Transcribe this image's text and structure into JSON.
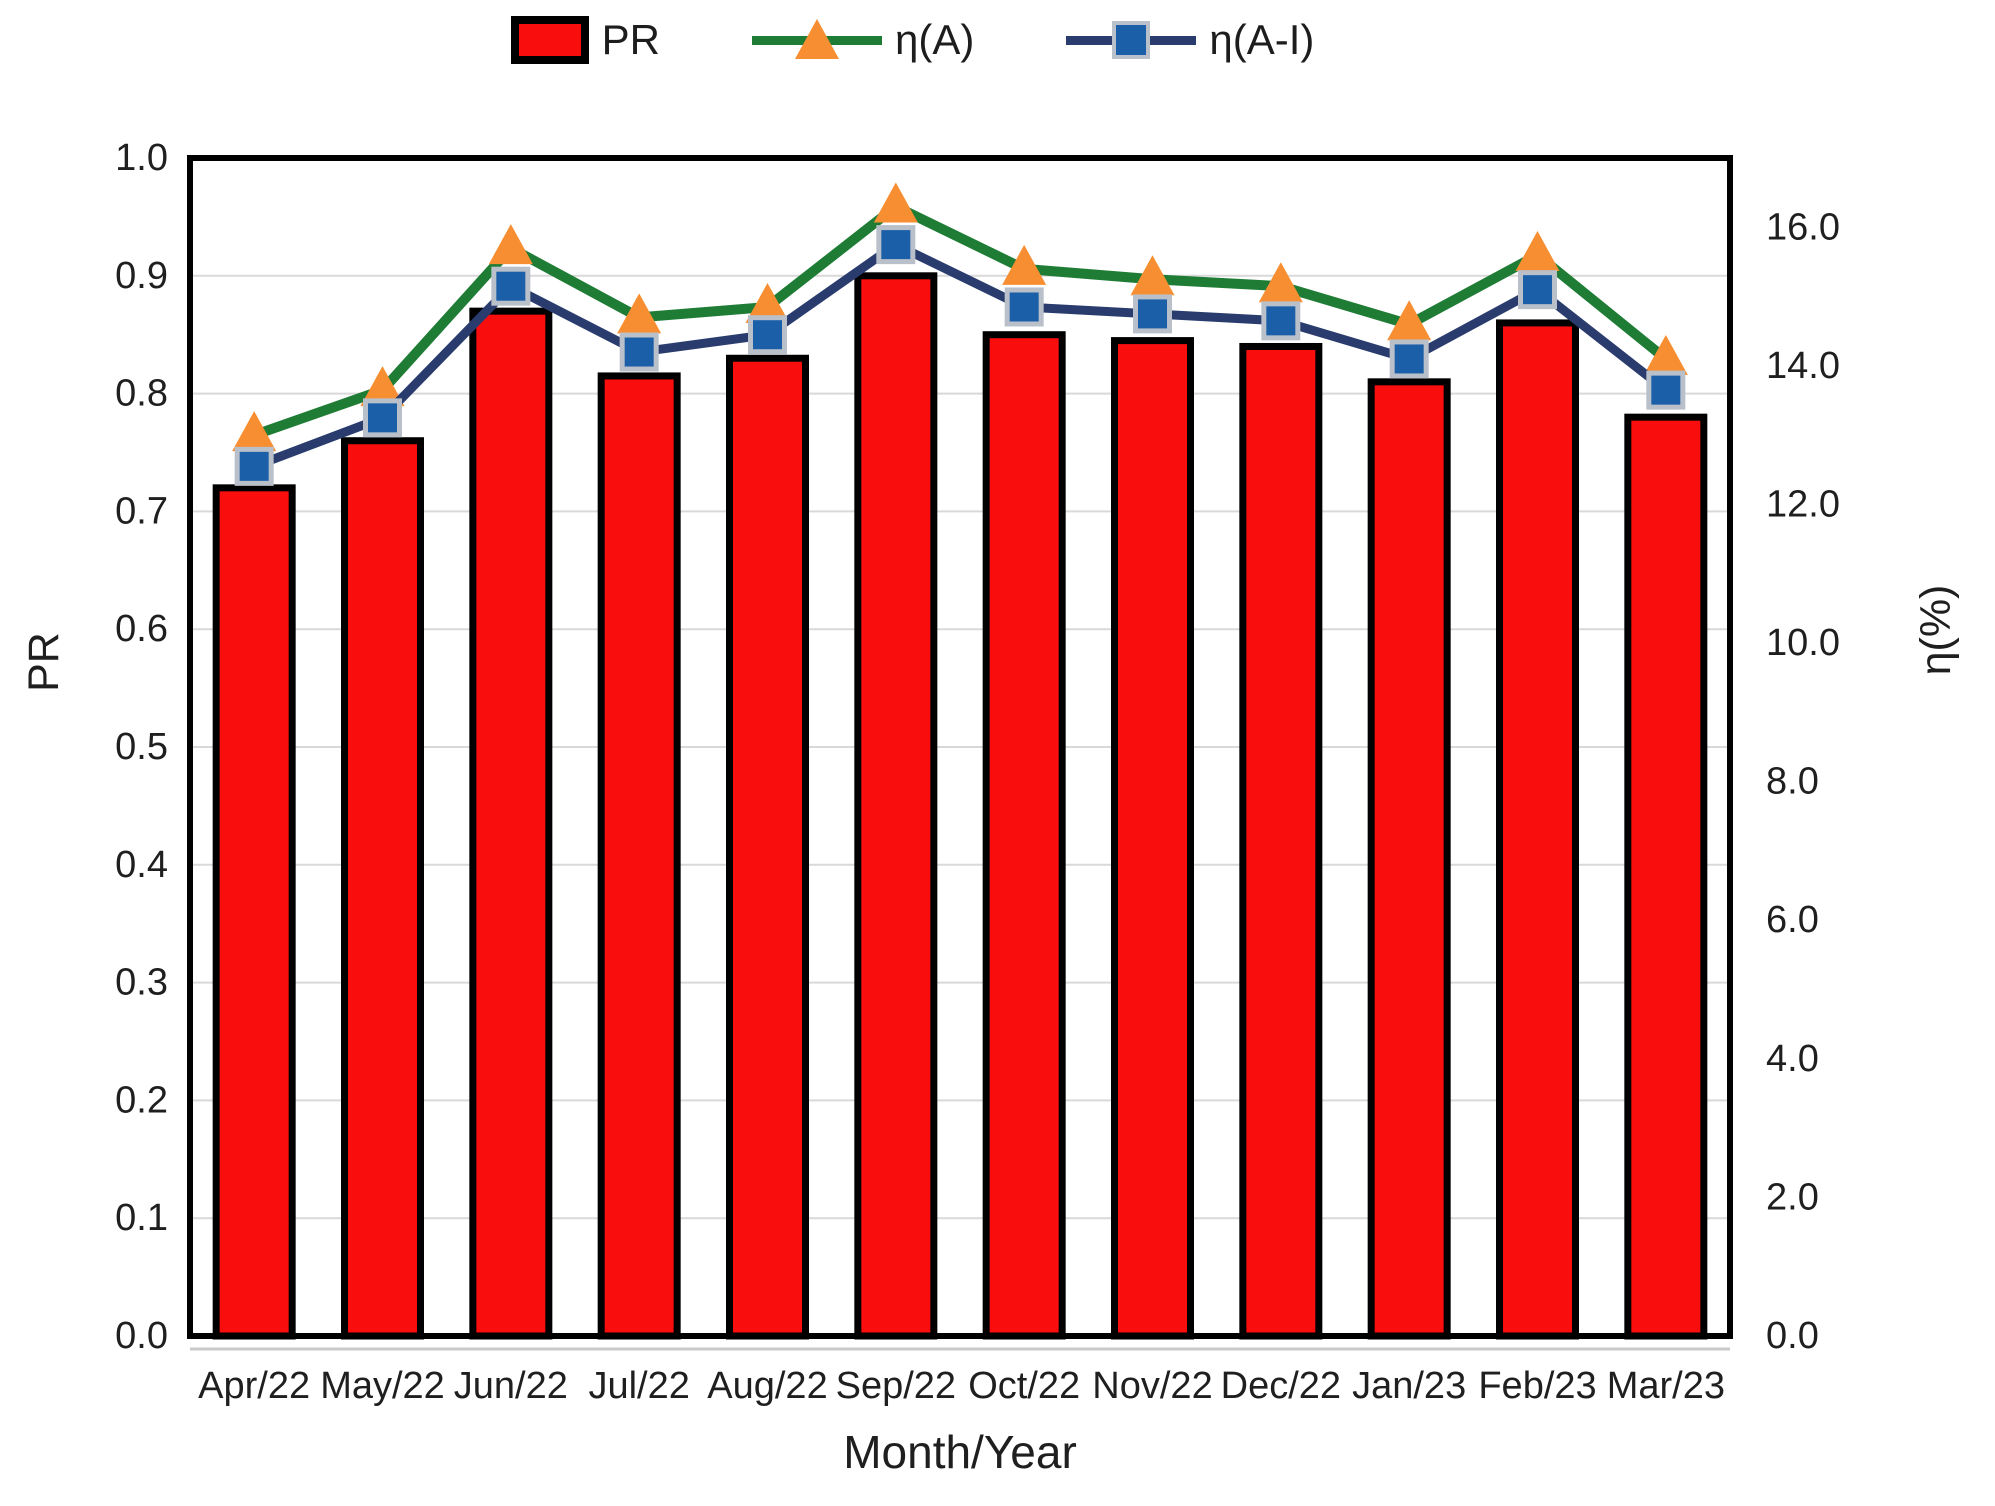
{
  "legend": {
    "items": [
      {
        "label": "PR",
        "swatch": "red-bar"
      },
      {
        "label": "η(A)",
        "swatch": "green-line-orange-triangle"
      },
      {
        "label": "η(A-I)",
        "swatch": "navy-line-blue-square"
      }
    ]
  },
  "colors": {
    "bar_fill": "#f90d0d",
    "bar_border": "#000000",
    "eta_a_line": "#1e7c35",
    "eta_a_marker": "#f78e31",
    "eta_ai_line": "#2a3c6e",
    "eta_ai_marker": "#1a5fa8",
    "eta_ai_marker_border": "#b9c0ca",
    "gridline": "#d9d9d9",
    "axis": "#000000",
    "text": "#1f1f1f"
  },
  "chart_data": {
    "type": "bar+line combo (dual axis)",
    "categories": [
      "Apr/22",
      "May/22",
      "Jun/22",
      "Jul/22",
      "Aug/22",
      "Sep/22",
      "Oct/22",
      "Nov/22",
      "Dec/22",
      "Jan/23",
      "Feb/23",
      "Mar/23"
    ],
    "series": [
      {
        "name": "PR",
        "type": "bar",
        "axis": "left",
        "values": [
          0.72,
          0.76,
          0.87,
          0.815,
          0.83,
          0.9,
          0.85,
          0.845,
          0.84,
          0.81,
          0.86,
          0.78
        ]
      },
      {
        "name": "η(A)",
        "type": "line",
        "axis": "right",
        "marker": "triangle",
        "values": [
          13.0,
          13.65,
          15.7,
          14.7,
          14.85,
          16.3,
          15.4,
          15.25,
          15.15,
          14.6,
          15.6,
          14.1
        ]
      },
      {
        "name": "η(A-I)",
        "type": "line",
        "axis": "right",
        "marker": "square",
        "values": [
          12.55,
          13.25,
          15.15,
          14.2,
          14.45,
          15.75,
          14.85,
          14.75,
          14.65,
          14.1,
          15.1,
          13.65
        ]
      }
    ],
    "xlabel": "Month/Year",
    "left_axis": {
      "label": "PR",
      "min": 0.0,
      "max": 1.0,
      "tick_labels": [
        "0.0",
        "0.1",
        "0.2",
        "0.3",
        "0.4",
        "0.5",
        "0.6",
        "0.7",
        "0.8",
        "0.9",
        "1.0"
      ]
    },
    "right_axis": {
      "label": "η(%)",
      "min": 0.0,
      "max": 17.0,
      "tick_labels": [
        "0.0",
        "2.0",
        "4.0",
        "6.0",
        "8.0",
        "10.0",
        "12.0",
        "14.0",
        "16.0"
      ]
    },
    "grid": {
      "horizontal": true,
      "legend_position": "top"
    }
  }
}
